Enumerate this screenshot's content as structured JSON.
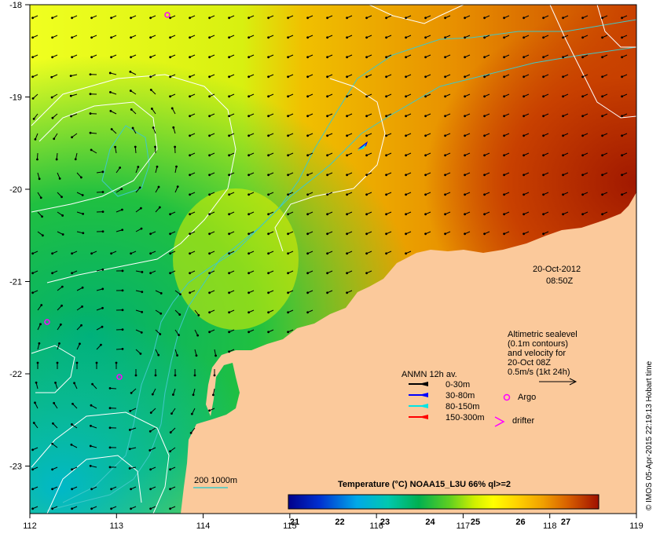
{
  "date_label": "20-Oct-2012",
  "time_label": "08:50Z",
  "altimetry_note": {
    "line1": "Altimetric sealevel",
    "line2": "(0.1m contours)",
    "line3": "and velocity for",
    "line4": "20-Oct 08Z",
    "line5": "0.5m/s (1kt 24h)"
  },
  "anmn": {
    "title": "ANMN 12h av.",
    "items": [
      {
        "label": "0-30m",
        "color": "#000000"
      },
      {
        "label": "30-80m",
        "color": "#0000ff"
      },
      {
        "label": "80-150m",
        "color": "#00e5e5"
      },
      {
        "label": "150-300m",
        "color": "#ff0000"
      }
    ]
  },
  "markers": {
    "argo_label": "Argo",
    "drifter_label": "drifter",
    "argo_color": "#ff00ff",
    "drifter_color": "#ff00ff"
  },
  "isobath_label": "200  1000m",
  "colorbar": {
    "title": "Temperature (°C) NOAA15_L3U 66% ql>=2",
    "ticks": [
      "21",
      "22",
      "23",
      "24",
      "25",
      "26",
      "27"
    ]
  },
  "credit": "© IMOS 05-Apr-2015 22:19:13 Hobart time",
  "x_axis_ticks": [
    "112",
    "113",
    "114",
    "115",
    "116",
    "117",
    "118",
    "119"
  ],
  "y_axis_ticks": [
    "-18",
    "-19",
    "-20",
    "-21",
    "-22",
    "-23"
  ],
  "colors": {
    "land": "#fbc99b",
    "isobath": "#40c8c8",
    "contour": "#ffffff"
  }
}
